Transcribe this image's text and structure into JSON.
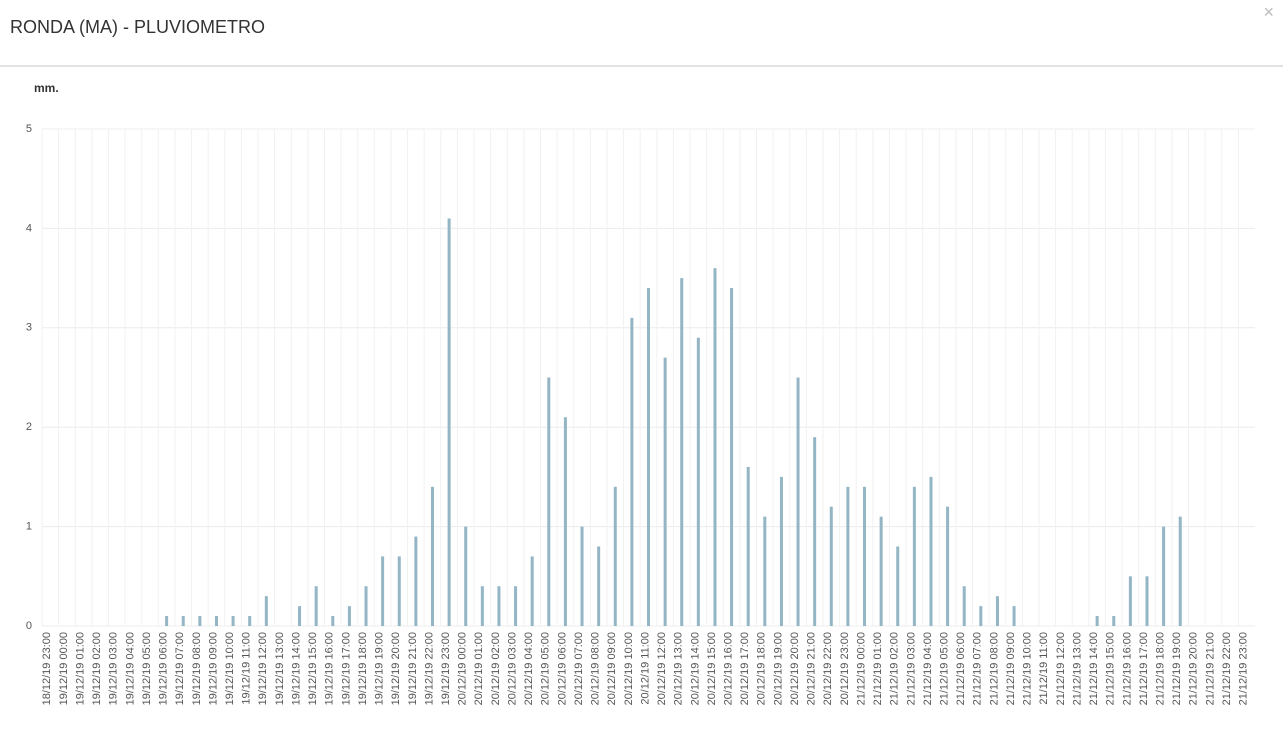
{
  "header": {
    "title": "RONDA (MA) - PLUVIOMETRO",
    "close": "×"
  },
  "chart_data": {
    "type": "bar",
    "y_label": "mm.",
    "categories": [
      "18/12/19 23:00",
      "19/12/19 00:00",
      "19/12/19 01:00",
      "19/12/19 02:00",
      "19/12/19 03:00",
      "19/12/19 04:00",
      "19/12/19 05:00",
      "19/12/19 06:00",
      "19/12/19 07:00",
      "19/12/19 08:00",
      "19/12/19 09:00",
      "19/12/19 10:00",
      "19/12/19 11:00",
      "19/12/19 12:00",
      "19/12/19 13:00",
      "19/12/19 14:00",
      "19/12/19 15:00",
      "19/12/19 16:00",
      "19/12/19 17:00",
      "19/12/19 18:00",
      "19/12/19 19:00",
      "19/12/19 20:00",
      "19/12/19 21:00",
      "19/12/19 22:00",
      "19/12/19 23:00",
      "20/12/19 00:00",
      "20/12/19 01:00",
      "20/12/19 02:00",
      "20/12/19 03:00",
      "20/12/19 04:00",
      "20/12/19 05:00",
      "20/12/19 06:00",
      "20/12/19 07:00",
      "20/12/19 08:00",
      "20/12/19 09:00",
      "20/12/19 10:00",
      "20/12/19 11:00",
      "20/12/19 12:00",
      "20/12/19 13:00",
      "20/12/19 14:00",
      "20/12/19 15:00",
      "20/12/19 16:00",
      "20/12/19 17:00",
      "20/12/19 18:00",
      "20/12/19 19:00",
      "20/12/19 20:00",
      "20/12/19 21:00",
      "20/12/19 22:00",
      "20/12/19 23:00",
      "21/12/19 00:00",
      "21/12/19 01:00",
      "21/12/19 02:00",
      "21/12/19 03:00",
      "21/12/19 04:00",
      "21/12/19 05:00",
      "21/12/19 06:00",
      "21/12/19 07:00",
      "21/12/19 08:00",
      "21/12/19 09:00",
      "21/12/19 10:00",
      "21/12/19 11:00",
      "21/12/19 12:00",
      "21/12/19 13:00",
      "21/12/19 14:00",
      "21/12/19 15:00",
      "21/12/19 16:00",
      "21/12/19 17:00",
      "21/12/19 18:00",
      "21/12/19 19:00",
      "21/12/19 20:00",
      "21/12/19 21:00",
      "21/12/19 22:00",
      "21/12/19 23:00"
    ],
    "values": [
      0,
      0,
      0,
      0,
      0,
      0,
      0,
      0.1,
      0.1,
      0.1,
      0.1,
      0.1,
      0.1,
      0.3,
      0,
      0.2,
      0.4,
      0.1,
      0.2,
      0.4,
      0.7,
      0.7,
      0.9,
      1.4,
      4.1,
      1.0,
      0.4,
      0.4,
      0.4,
      0.7,
      2.5,
      2.1,
      1.0,
      0.8,
      1.4,
      3.1,
      3.4,
      2.7,
      3.5,
      2.9,
      3.6,
      3.4,
      1.6,
      1.1,
      1.5,
      2.5,
      1.9,
      1.2,
      1.4,
      1.4,
      1.1,
      0.8,
      1.4,
      1.5,
      1.2,
      0.4,
      0.2,
      0.3,
      0.2,
      0,
      0,
      0,
      0,
      0.1,
      0.1,
      0.5,
      0.5,
      1.0,
      1.1,
      0,
      0,
      0,
      0
    ],
    "color": "#93b5c4",
    "ylim": [
      0,
      5
    ],
    "yticks": [
      0,
      1,
      2,
      3,
      4,
      5
    ],
    "grid": true
  }
}
